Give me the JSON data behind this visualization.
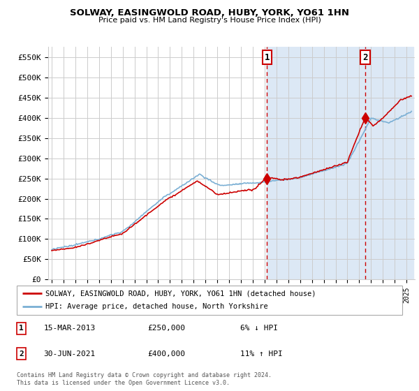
{
  "title": "SOLWAY, EASINGWOLD ROAD, HUBY, YORK, YO61 1HN",
  "subtitle": "Price paid vs. HM Land Registry's House Price Index (HPI)",
  "ylabel_ticks": [
    "£0",
    "£50K",
    "£100K",
    "£150K",
    "£200K",
    "£250K",
    "£300K",
    "£350K",
    "£400K",
    "£450K",
    "£500K",
    "£550K"
  ],
  "ytick_values": [
    0,
    50000,
    100000,
    150000,
    200000,
    250000,
    300000,
    350000,
    400000,
    450000,
    500000,
    550000
  ],
  "ylim": [
    0,
    575000
  ],
  "plot_bg": "#ffffff",
  "legend_line1": "SOLWAY, EASINGWOLD ROAD, HUBY, YORK, YO61 1HN (detached house)",
  "legend_line2": "HPI: Average price, detached house, North Yorkshire",
  "annotation1_date": "15-MAR-2013",
  "annotation1_price": "£250,000",
  "annotation1_note": "6% ↓ HPI",
  "annotation2_date": "30-JUN-2021",
  "annotation2_price": "£400,000",
  "annotation2_note": "11% ↑ HPI",
  "footer": "Contains HM Land Registry data © Crown copyright and database right 2024.\nThis data is licensed under the Open Government Licence v3.0.",
  "hpi_color": "#7aafd4",
  "sold_color": "#cc0000",
  "vline_color": "#cc0000",
  "highlight_bg": "#dce8f5",
  "grid_color": "#cccccc"
}
